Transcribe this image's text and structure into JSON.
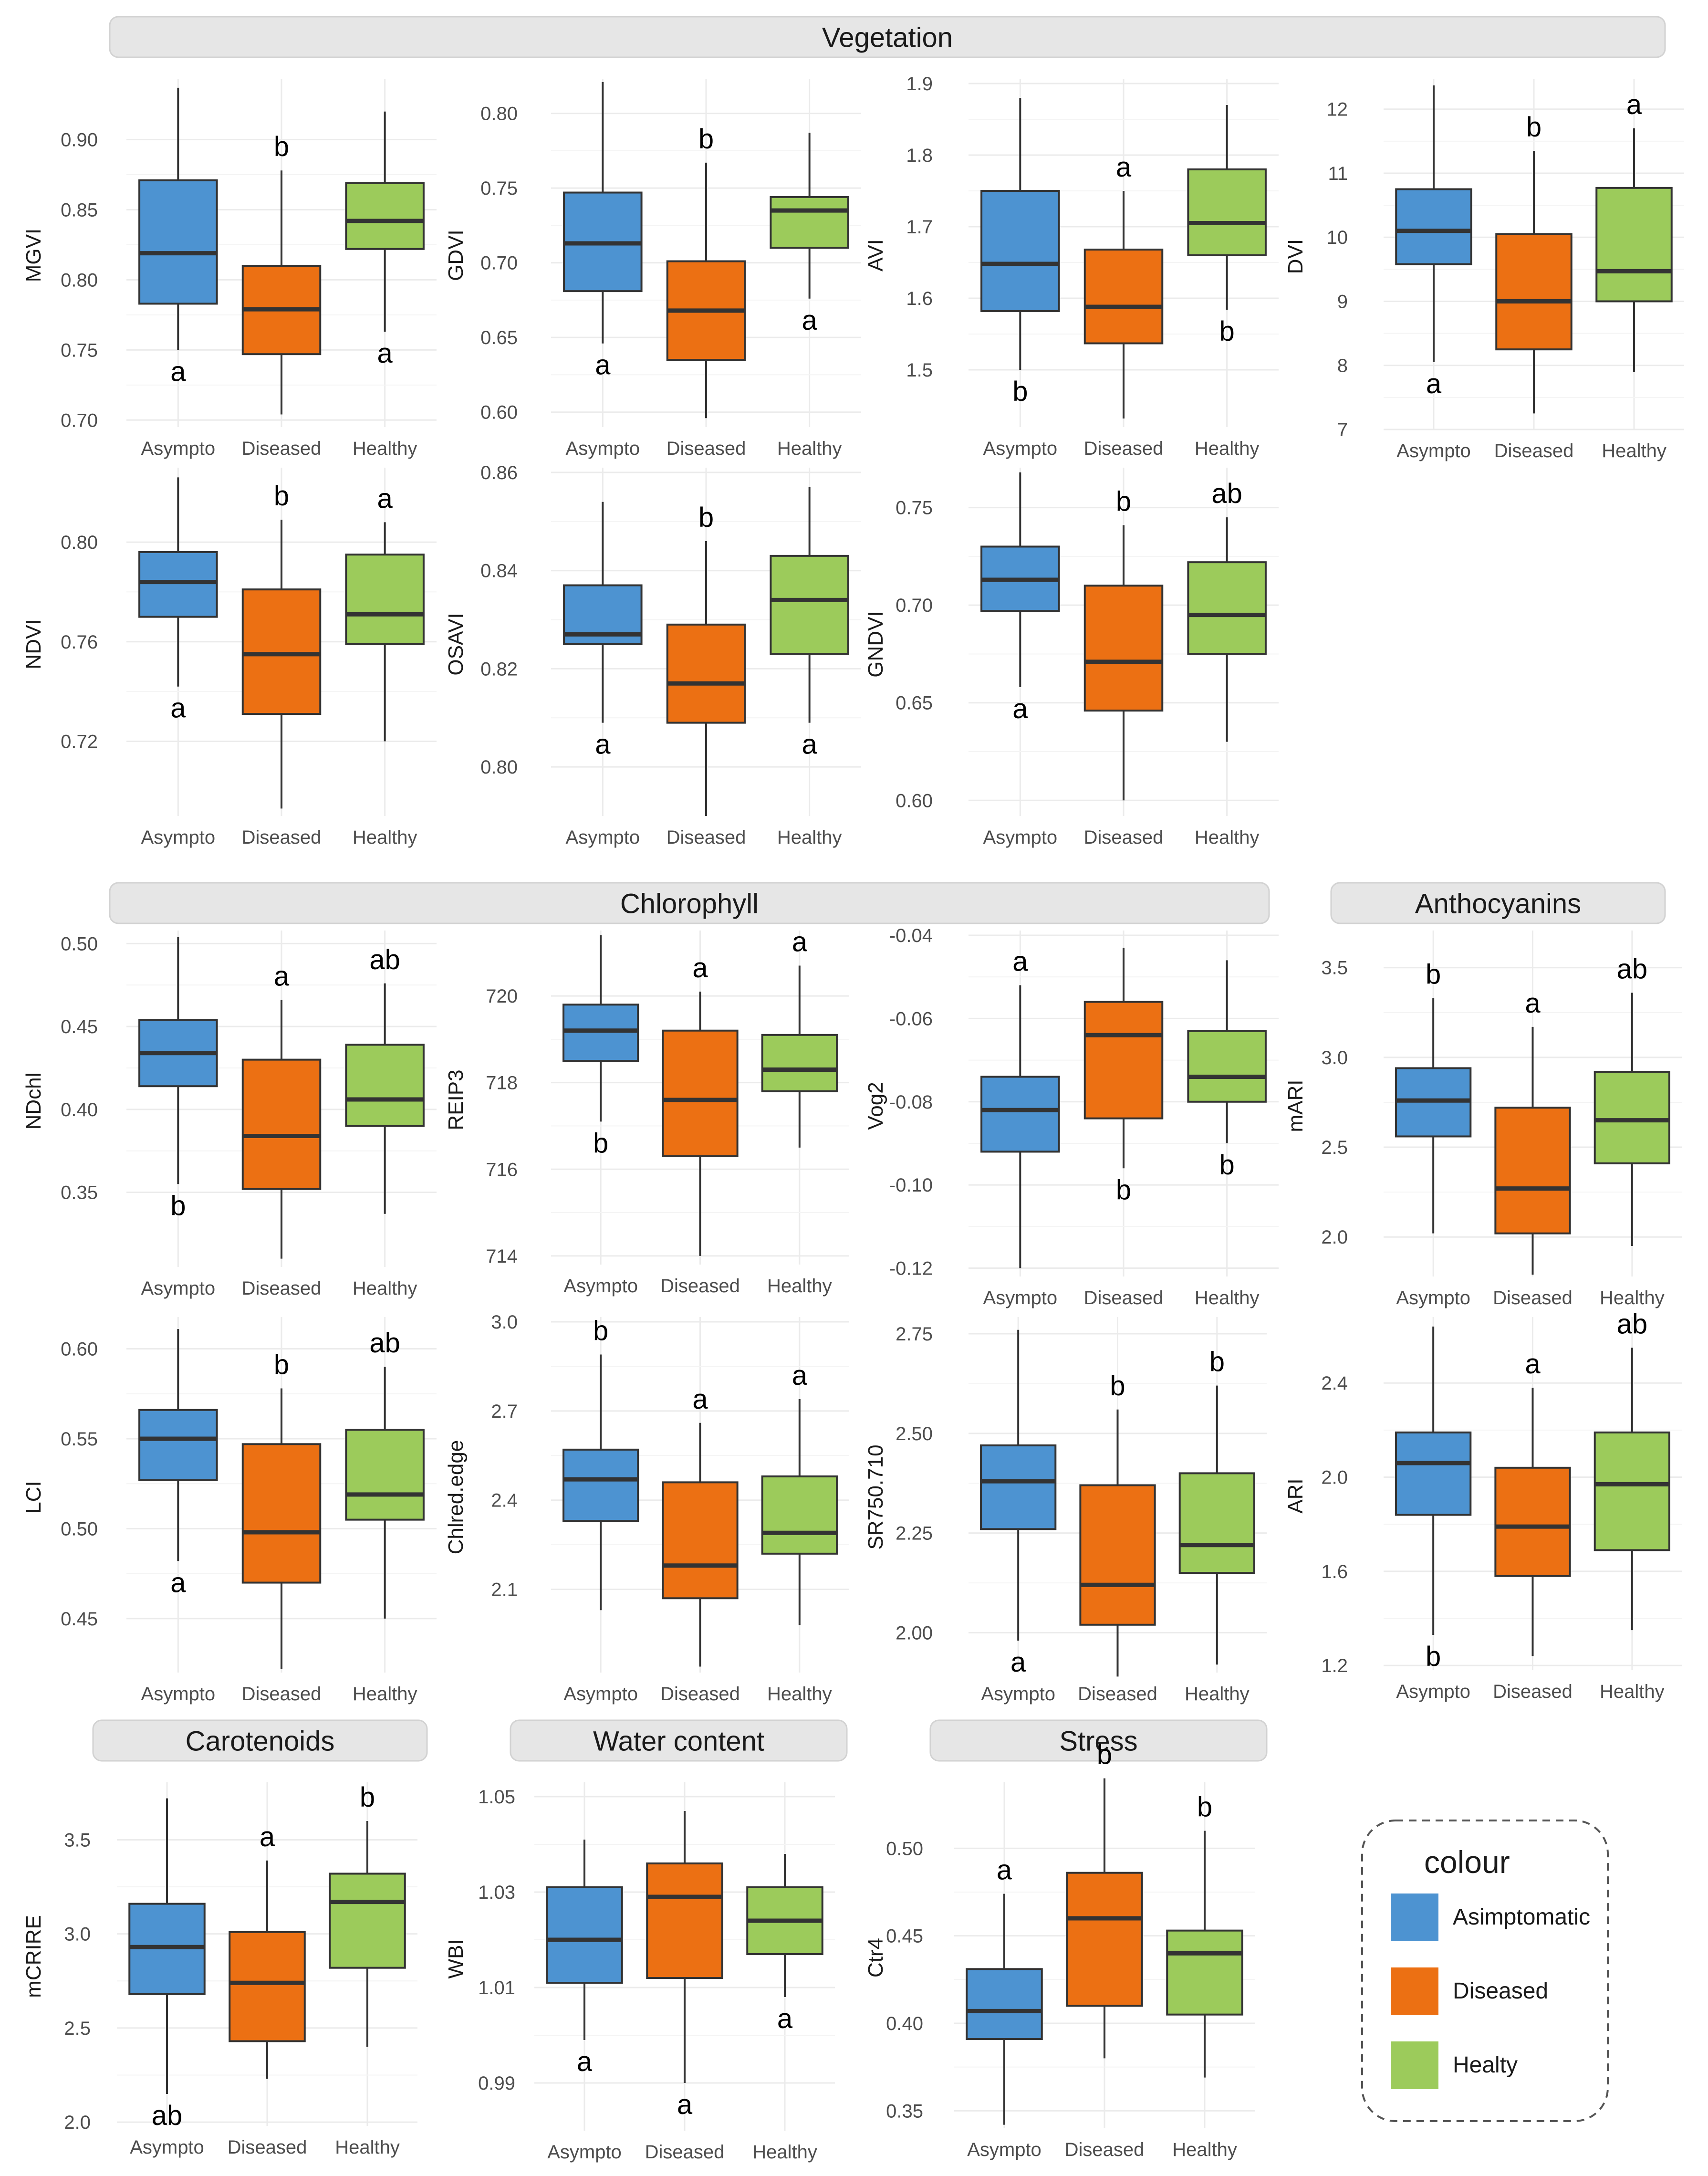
{
  "colors": {
    "Asympto": "#4d93d1",
    "Diseased": "#ec7013",
    "Healthy": "#9ccb5b",
    "median": "#333333",
    "strip_bg": "#e6e6e6",
    "grid": "#ebebeb"
  },
  "categories": [
    "Asympto",
    "Diseased",
    "Healthy"
  ],
  "sections": [
    {
      "key": "vegetation",
      "title": "Vegetation"
    },
    {
      "key": "chlorophyll",
      "title": "Chlorophyll"
    },
    {
      "key": "anthocyanins",
      "title": "Anthocyanins"
    },
    {
      "key": "carotenoids",
      "title": "Carotenoids"
    },
    {
      "key": "water",
      "title": "Water content"
    },
    {
      "key": "stress",
      "title": "Stress"
    }
  ],
  "legend": {
    "title": "colour",
    "items": [
      {
        "label": "Asimptomatic",
        "color": "#4d93d1"
      },
      {
        "label": "Diseased",
        "color": "#ec7013"
      },
      {
        "label": "Healty",
        "color": "#9ccb5b"
      }
    ]
  },
  "chart_data": [
    {
      "type": "box",
      "section": "Vegetation",
      "ylabel": "MGVI",
      "ylim": [
        0.695,
        0.94
      ],
      "ticks": [
        0.7,
        0.75,
        0.8,
        0.85,
        0.9
      ],
      "tick_labels": [
        "0.70",
        "0.75",
        "0.80",
        "0.85",
        "0.90"
      ],
      "boxes": [
        {
          "category": "Asympto",
          "min": 0.75,
          "q1": 0.783,
          "median": 0.819,
          "q3": 0.871,
          "max": 0.937,
          "letter": "a",
          "letter_pos": "below"
        },
        {
          "category": "Diseased",
          "min": 0.704,
          "q1": 0.747,
          "median": 0.779,
          "q3": 0.81,
          "max": 0.878,
          "letter": "b",
          "letter_pos": "above"
        },
        {
          "category": "Healthy",
          "min": 0.763,
          "q1": 0.822,
          "median": 0.842,
          "q3": 0.869,
          "max": 0.92,
          "letter": "a",
          "letter_pos": "below"
        }
      ]
    },
    {
      "type": "box",
      "section": "Vegetation",
      "ylabel": "GDVI",
      "ylim": [
        0.59,
        0.82
      ],
      "ticks": [
        0.6,
        0.65,
        0.7,
        0.75,
        0.8
      ],
      "tick_labels": [
        "0.60",
        "0.65",
        "0.70",
        "0.75",
        "0.80"
      ],
      "boxes": [
        {
          "category": "Asympto",
          "min": 0.646,
          "q1": 0.681,
          "median": 0.713,
          "q3": 0.747,
          "max": 0.821,
          "letter": "a",
          "letter_pos": "below"
        },
        {
          "category": "Diseased",
          "min": 0.596,
          "q1": 0.635,
          "median": 0.668,
          "q3": 0.701,
          "max": 0.767,
          "letter": "b",
          "letter_pos": "above"
        },
        {
          "category": "Healthy",
          "min": 0.676,
          "q1": 0.71,
          "median": 0.735,
          "q3": 0.744,
          "max": 0.787,
          "letter": "a",
          "letter_pos": "below"
        }
      ]
    },
    {
      "type": "box",
      "section": "Vegetation",
      "ylabel": "AVI",
      "ylim": [
        1.42,
        1.9
      ],
      "ticks": [
        1.5,
        1.6,
        1.7,
        1.8,
        1.9
      ],
      "tick_labels": [
        "1.5",
        "1.6",
        "1.7",
        "1.8",
        "1.9"
      ],
      "boxes": [
        {
          "category": "Asympto",
          "min": 1.5,
          "q1": 1.582,
          "median": 1.648,
          "q3": 1.75,
          "max": 1.88,
          "letter": "b",
          "letter_pos": "below"
        },
        {
          "category": "Diseased",
          "min": 1.432,
          "q1": 1.537,
          "median": 1.588,
          "q3": 1.668,
          "max": 1.75,
          "letter": "a",
          "letter_pos": "above"
        },
        {
          "category": "Healthy",
          "min": 1.584,
          "q1": 1.66,
          "median": 1.705,
          "q3": 1.78,
          "max": 1.87,
          "letter": "b",
          "letter_pos": "below"
        }
      ]
    },
    {
      "type": "box",
      "section": "Vegetation",
      "ylabel": "DVI",
      "ylim": [
        7,
        12.4
      ],
      "ticks": [
        7,
        8,
        9,
        10,
        11,
        12
      ],
      "tick_labels": [
        "7",
        "8",
        "9",
        "10",
        "11",
        "12"
      ],
      "boxes": [
        {
          "category": "Asympto",
          "min": 8.05,
          "q1": 9.58,
          "median": 10.1,
          "q3": 10.75,
          "max": 12.37,
          "letter": "a",
          "letter_pos": "below"
        },
        {
          "category": "Diseased",
          "min": 7.25,
          "q1": 8.25,
          "median": 9.0,
          "q3": 10.05,
          "max": 11.35,
          "letter": "b",
          "letter_pos": "above"
        },
        {
          "category": "Healthy",
          "min": 7.9,
          "q1": 9.0,
          "median": 9.47,
          "q3": 10.77,
          "max": 11.7,
          "letter": "a",
          "letter_pos": "above"
        }
      ]
    },
    {
      "type": "box",
      "section": "Vegetation",
      "ylabel": "NDVI",
      "ylim": [
        0.69,
        0.828
      ],
      "ticks": [
        0.72,
        0.76,
        0.8
      ],
      "tick_labels": [
        "0.72",
        "0.76",
        "0.80"
      ],
      "boxes": [
        {
          "category": "Asympto",
          "min": 0.742,
          "q1": 0.77,
          "median": 0.784,
          "q3": 0.796,
          "max": 0.826,
          "letter": "a",
          "letter_pos": "below"
        },
        {
          "category": "Diseased",
          "min": 0.693,
          "q1": 0.731,
          "median": 0.755,
          "q3": 0.781,
          "max": 0.809,
          "letter": "b",
          "letter_pos": "above"
        },
        {
          "category": "Healthy",
          "min": 0.72,
          "q1": 0.759,
          "median": 0.771,
          "q3": 0.795,
          "max": 0.808,
          "letter": "a",
          "letter_pos": "above"
        }
      ]
    },
    {
      "type": "box",
      "section": "Vegetation",
      "ylabel": "OSAVI",
      "ylim": [
        0.79,
        0.86
      ],
      "ticks": [
        0.8,
        0.82,
        0.84,
        0.86
      ],
      "tick_labels": [
        "0.80",
        "0.82",
        "0.84",
        "0.86"
      ],
      "boxes": [
        {
          "category": "Asympto",
          "min": 0.809,
          "q1": 0.825,
          "median": 0.827,
          "q3": 0.837,
          "max": 0.854,
          "letter": "a",
          "letter_pos": "below"
        },
        {
          "category": "Diseased",
          "min": 0.79,
          "q1": 0.809,
          "median": 0.817,
          "q3": 0.829,
          "max": 0.846,
          "letter": "b",
          "letter_pos": "above"
        },
        {
          "category": "Healthy",
          "min": 0.809,
          "q1": 0.823,
          "median": 0.834,
          "q3": 0.843,
          "max": 0.857,
          "letter": "a",
          "letter_pos": "below"
        }
      ]
    },
    {
      "type": "box",
      "section": "Vegetation",
      "ylabel": "GNDVI",
      "ylim": [
        0.592,
        0.768
      ],
      "ticks": [
        0.6,
        0.65,
        0.7,
        0.75
      ],
      "tick_labels": [
        "0.60",
        "0.65",
        "0.70",
        "0.75"
      ],
      "boxes": [
        {
          "category": "Asympto",
          "min": 0.658,
          "q1": 0.697,
          "median": 0.713,
          "q3": 0.73,
          "max": 0.768,
          "letter": "a",
          "letter_pos": "below"
        },
        {
          "category": "Diseased",
          "min": 0.6,
          "q1": 0.646,
          "median": 0.671,
          "q3": 0.71,
          "max": 0.741,
          "letter": "b",
          "letter_pos": "above"
        },
        {
          "category": "Healthy",
          "min": 0.63,
          "q1": 0.675,
          "median": 0.695,
          "q3": 0.722,
          "max": 0.745,
          "letter": "ab",
          "letter_pos": "above"
        }
      ]
    },
    {
      "type": "box",
      "section": "Chlorophyll",
      "ylabel": "NDchl",
      "ylim": [
        0.305,
        0.505
      ],
      "ticks": [
        0.35,
        0.4,
        0.45,
        0.5
      ],
      "tick_labels": [
        "0.35",
        "0.40",
        "0.45",
        "0.50"
      ],
      "boxes": [
        {
          "category": "Asympto",
          "min": 0.355,
          "q1": 0.414,
          "median": 0.434,
          "q3": 0.454,
          "max": 0.504,
          "letter": "b",
          "letter_pos": "below"
        },
        {
          "category": "Diseased",
          "min": 0.31,
          "q1": 0.352,
          "median": 0.384,
          "q3": 0.43,
          "max": 0.466,
          "letter": "a",
          "letter_pos": "above"
        },
        {
          "category": "Healthy",
          "min": 0.337,
          "q1": 0.39,
          "median": 0.406,
          "q3": 0.439,
          "max": 0.476,
          "letter": "ab",
          "letter_pos": "above"
        }
      ]
    },
    {
      "type": "box",
      "section": "Chlorophyll",
      "ylabel": "REIP3",
      "ylim": [
        713.8,
        721.4
      ],
      "ticks": [
        714,
        716,
        718,
        720
      ],
      "tick_labels": [
        "714",
        "716",
        "718",
        "720"
      ],
      "boxes": [
        {
          "category": "Asympto",
          "min": 717.1,
          "q1": 718.5,
          "median": 719.2,
          "q3": 719.8,
          "max": 721.4,
          "letter": "b",
          "letter_pos": "below"
        },
        {
          "category": "Diseased",
          "min": 714.0,
          "q1": 716.3,
          "median": 717.6,
          "q3": 719.2,
          "max": 720.1,
          "letter": "a",
          "letter_pos": "above"
        },
        {
          "category": "Healthy",
          "min": 716.5,
          "q1": 717.8,
          "median": 718.3,
          "q3": 719.1,
          "max": 720.7,
          "letter": "a",
          "letter_pos": "above"
        }
      ]
    },
    {
      "type": "box",
      "section": "Chlorophyll",
      "ylabel": "Vog2",
      "ylim": [
        -0.122,
        -0.04
      ],
      "ticks": [
        -0.12,
        -0.1,
        -0.08,
        -0.06,
        -0.04
      ],
      "tick_labels": [
        "-0.12",
        "-0.10",
        "-0.08",
        "-0.06",
        "-0.04"
      ],
      "boxes": [
        {
          "category": "Asympto",
          "min": -0.12,
          "q1": -0.092,
          "median": -0.082,
          "q3": -0.074,
          "max": -0.052,
          "letter": "a",
          "letter_pos": "above"
        },
        {
          "category": "Diseased",
          "min": -0.096,
          "q1": -0.084,
          "median": -0.064,
          "q3": -0.056,
          "max": -0.043,
          "letter": "b",
          "letter_pos": "below"
        },
        {
          "category": "Healthy",
          "min": -0.09,
          "q1": -0.08,
          "median": -0.074,
          "q3": -0.063,
          "max": -0.046,
          "letter": "b",
          "letter_pos": "below"
        }
      ]
    },
    {
      "type": "box",
      "section": "Anthocyanins",
      "ylabel": "mARI",
      "ylim": [
        1.78,
        3.68
      ],
      "ticks": [
        2.0,
        2.5,
        3.0,
        3.5
      ],
      "tick_labels": [
        "2.0",
        "2.5",
        "3.0",
        "3.5"
      ],
      "boxes": [
        {
          "category": "Asympto",
          "min": 2.02,
          "q1": 2.56,
          "median": 2.76,
          "q3": 2.94,
          "max": 3.33,
          "letter": "b",
          "letter_pos": "above"
        },
        {
          "category": "Diseased",
          "min": 1.79,
          "q1": 2.02,
          "median": 2.27,
          "q3": 2.72,
          "max": 3.17,
          "letter": "a",
          "letter_pos": "above"
        },
        {
          "category": "Healthy",
          "min": 1.95,
          "q1": 2.41,
          "median": 2.65,
          "q3": 2.92,
          "max": 3.36,
          "letter": "ab",
          "letter_pos": "above"
        }
      ]
    },
    {
      "type": "box",
      "section": "Chlorophyll",
      "ylabel": "LCI",
      "ylim": [
        0.42,
        0.615
      ],
      "ticks": [
        0.45,
        0.5,
        0.55,
        0.6
      ],
      "tick_labels": [
        "0.45",
        "0.50",
        "0.55",
        "0.60"
      ],
      "boxes": [
        {
          "category": "Asympto",
          "min": 0.482,
          "q1": 0.527,
          "median": 0.55,
          "q3": 0.566,
          "max": 0.611,
          "letter": "a",
          "letter_pos": "below"
        },
        {
          "category": "Diseased",
          "min": 0.422,
          "q1": 0.47,
          "median": 0.498,
          "q3": 0.547,
          "max": 0.578,
          "letter": "b",
          "letter_pos": "above"
        },
        {
          "category": "Healthy",
          "min": 0.45,
          "q1": 0.505,
          "median": 0.519,
          "q3": 0.555,
          "max": 0.59,
          "letter": "ab",
          "letter_pos": "above"
        }
      ]
    },
    {
      "type": "box",
      "section": "Chlorophyll",
      "ylabel": "Chlred.edge",
      "ylim": [
        1.82,
        3.0
      ],
      "ticks": [
        2.1,
        2.4,
        2.7,
        3.0
      ],
      "tick_labels": [
        "2.1",
        "2.4",
        "2.7",
        "3.0"
      ],
      "boxes": [
        {
          "category": "Asympto",
          "min": 2.03,
          "q1": 2.33,
          "median": 2.47,
          "q3": 2.57,
          "max": 2.89,
          "letter": "b",
          "letter_pos": "above"
        },
        {
          "category": "Diseased",
          "min": 1.84,
          "q1": 2.07,
          "median": 2.18,
          "q3": 2.46,
          "max": 2.66,
          "letter": "a",
          "letter_pos": "above"
        },
        {
          "category": "Healthy",
          "min": 1.98,
          "q1": 2.22,
          "median": 2.29,
          "q3": 2.48,
          "max": 2.74,
          "letter": "a",
          "letter_pos": "above"
        }
      ]
    },
    {
      "type": "box",
      "section": "Chlorophyll",
      "ylabel": "SR750.710",
      "ylim": [
        1.9,
        2.78
      ],
      "ticks": [
        2.0,
        2.25,
        2.5,
        2.75
      ],
      "tick_labels": [
        "2.00",
        "2.25",
        "2.50",
        "2.75"
      ],
      "boxes": [
        {
          "category": "Asympto",
          "min": 1.98,
          "q1": 2.26,
          "median": 2.38,
          "q3": 2.47,
          "max": 2.76,
          "letter": "a",
          "letter_pos": "below"
        },
        {
          "category": "Diseased",
          "min": 1.89,
          "q1": 2.02,
          "median": 2.12,
          "q3": 2.37,
          "max": 2.56,
          "letter": "b",
          "letter_pos": "above"
        },
        {
          "category": "Healthy",
          "min": 1.92,
          "q1": 2.15,
          "median": 2.22,
          "q3": 2.4,
          "max": 2.62,
          "letter": "b",
          "letter_pos": "above"
        }
      ]
    },
    {
      "type": "box",
      "section": "Anthocyanins",
      "ylabel": "ARI",
      "ylim": [
        1.18,
        2.66
      ],
      "ticks": [
        1.2,
        1.6,
        2.0,
        2.4
      ],
      "tick_labels": [
        "1.2",
        "1.6",
        "2.0",
        "2.4"
      ],
      "boxes": [
        {
          "category": "Asympto",
          "min": 1.33,
          "q1": 1.84,
          "median": 2.06,
          "q3": 2.19,
          "max": 2.64,
          "letter": "b",
          "letter_pos": "below"
        },
        {
          "category": "Diseased",
          "min": 1.24,
          "q1": 1.58,
          "median": 1.79,
          "q3": 2.04,
          "max": 2.38,
          "letter": "a",
          "letter_pos": "above"
        },
        {
          "category": "Healthy",
          "min": 1.35,
          "q1": 1.69,
          "median": 1.97,
          "q3": 2.19,
          "max": 2.55,
          "letter": "ab",
          "letter_pos": "above"
        }
      ]
    },
    {
      "type": "box",
      "section": "Carotenoids",
      "ylabel": "mCRIRE",
      "ylim": [
        1.98,
        3.78
      ],
      "ticks": [
        2.0,
        2.5,
        3.0,
        3.5
      ],
      "tick_labels": [
        "2.0",
        "2.5",
        "3.0",
        "3.5"
      ],
      "boxes": [
        {
          "category": "Asympto",
          "min": 2.15,
          "q1": 2.68,
          "median": 2.93,
          "q3": 3.16,
          "max": 3.72,
          "letter": "ab",
          "letter_pos": "below"
        },
        {
          "category": "Diseased",
          "min": 2.23,
          "q1": 2.43,
          "median": 2.74,
          "q3": 3.01,
          "max": 3.39,
          "letter": "a",
          "letter_pos": "above"
        },
        {
          "category": "Healthy",
          "min": 2.4,
          "q1": 2.82,
          "median": 3.17,
          "q3": 3.32,
          "max": 3.6,
          "letter": "b",
          "letter_pos": "above"
        }
      ]
    },
    {
      "type": "box",
      "section": "Water content",
      "ylabel": "WBI",
      "ylim": [
        0.98,
        1.052
      ],
      "ticks": [
        0.99,
        1.01,
        1.03,
        1.05
      ],
      "tick_labels": [
        "0.99",
        "1.01",
        "1.03",
        "1.05"
      ],
      "boxes": [
        {
          "category": "Asympto",
          "min": 0.999,
          "q1": 1.011,
          "median": 1.02,
          "q3": 1.031,
          "max": 1.041,
          "letter": "a",
          "letter_pos": "below"
        },
        {
          "category": "Diseased",
          "min": 0.99,
          "q1": 1.012,
          "median": 1.029,
          "q3": 1.036,
          "max": 1.047,
          "letter": "a",
          "letter_pos": "below"
        },
        {
          "category": "Healthy",
          "min": 1.008,
          "q1": 1.017,
          "median": 1.024,
          "q3": 1.031,
          "max": 1.038,
          "letter": "a",
          "letter_pos": "below"
        }
      ]
    },
    {
      "type": "box",
      "section": "Stress",
      "ylabel": "Ctr4",
      "ylim": [
        0.34,
        0.535
      ],
      "ticks": [
        0.35,
        0.4,
        0.45,
        0.5
      ],
      "tick_labels": [
        "0.35",
        "0.40",
        "0.45",
        "0.50"
      ],
      "boxes": [
        {
          "category": "Asympto",
          "min": 0.342,
          "q1": 0.391,
          "median": 0.407,
          "q3": 0.431,
          "max": 0.474,
          "letter": "a",
          "letter_pos": "above"
        },
        {
          "category": "Diseased",
          "min": 0.38,
          "q1": 0.41,
          "median": 0.46,
          "q3": 0.486,
          "max": 0.54,
          "letter": "b",
          "letter_pos": "above"
        },
        {
          "category": "Healthy",
          "min": 0.369,
          "q1": 0.405,
          "median": 0.44,
          "q3": 0.453,
          "max": 0.51,
          "letter": "b",
          "letter_pos": "above"
        }
      ]
    }
  ]
}
